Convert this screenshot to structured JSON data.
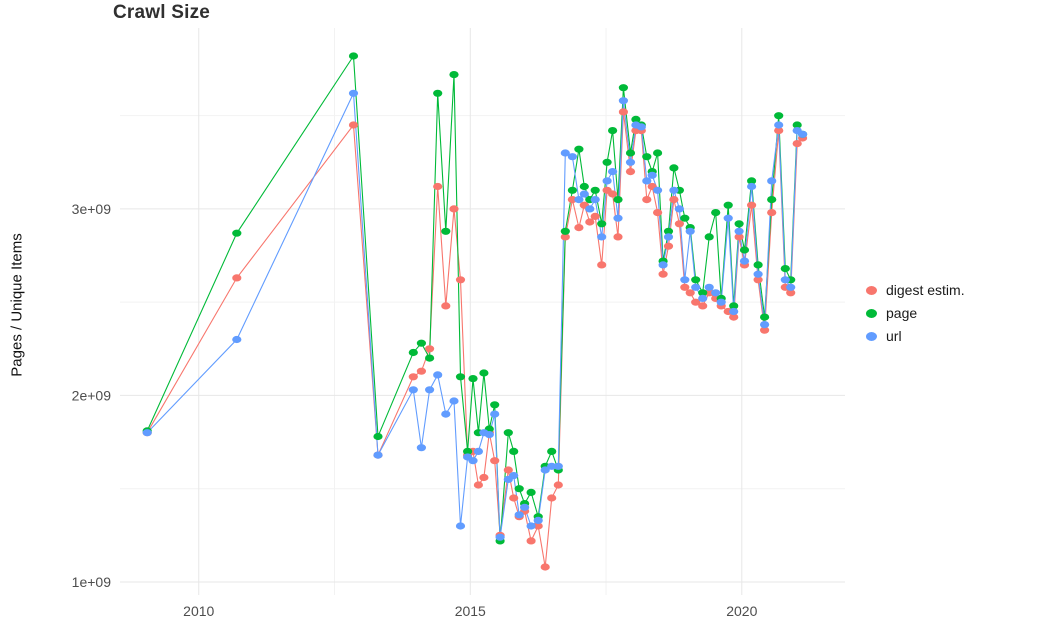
{
  "page": {
    "background_color": "#ffffff",
    "text_color_ticks": "#4d4d4d",
    "grid_major_color": "#e7e7e7",
    "grid_minor_color": "#f2f2f2"
  },
  "chart_data": {
    "type": "scatter",
    "title": "Crawl Size",
    "xlabel": "",
    "ylabel": "Pages / Unique Items",
    "legend_position": "right",
    "grid": true,
    "values_unit": "1e9 (billions of pages / unique items)",
    "xlim": [
      2008.55,
      2021.9
    ],
    "ylim": [
      0.93,
      3.97
    ],
    "x_ticks": [
      {
        "value": 2010,
        "label": "2010"
      },
      {
        "value": 2015,
        "label": "2015"
      },
      {
        "value": 2020,
        "label": "2020"
      }
    ],
    "x_minor": [
      2012.5,
      2017.5
    ],
    "y_ticks": [
      {
        "value": 1,
        "label": "1e+09"
      },
      {
        "value": 2,
        "label": "2e+09"
      },
      {
        "value": 3,
        "label": "3e+09"
      }
    ],
    "y_minor": [
      1.5,
      2.5,
      3.5
    ],
    "x": [
      2009.05,
      2010.7,
      2012.85,
      2013.3,
      2013.95,
      2014.1,
      2014.25,
      2014.4,
      2014.55,
      2014.7,
      2014.82,
      2014.95,
      2015.05,
      2015.15,
      2015.25,
      2015.35,
      2015.45,
      2015.55,
      2015.7,
      2015.8,
      2015.9,
      2016.0,
      2016.12,
      2016.25,
      2016.38,
      2016.5,
      2016.62,
      2016.75,
      2016.88,
      2017.0,
      2017.1,
      2017.2,
      2017.3,
      2017.42,
      2017.52,
      2017.62,
      2017.72,
      2017.82,
      2017.95,
      2018.05,
      2018.15,
      2018.25,
      2018.35,
      2018.45,
      2018.55,
      2018.65,
      2018.75,
      2018.85,
      2018.95,
      2019.05,
      2019.15,
      2019.28,
      2019.4,
      2019.52,
      2019.62,
      2019.75,
      2019.85,
      2019.95,
      2020.05,
      2020.18,
      2020.3,
      2020.42,
      2020.55,
      2020.68,
      2020.8,
      2020.9,
      2021.02,
      2021.12
    ],
    "series": [
      {
        "name": "digest estim.",
        "color": "#F8766D",
        "values": [
          1.8,
          2.63,
          3.45,
          1.68,
          2.1,
          2.13,
          2.25,
          3.12,
          2.48,
          3.0,
          2.62,
          1.68,
          1.7,
          1.52,
          1.56,
          1.8,
          1.65,
          1.25,
          1.6,
          1.45,
          1.35,
          1.38,
          1.22,
          1.3,
          1.08,
          1.45,
          1.52,
          2.85,
          3.05,
          2.9,
          3.02,
          2.93,
          2.96,
          2.7,
          3.1,
          3.08,
          2.85,
          3.52,
          3.2,
          3.42,
          3.42,
          3.05,
          3.12,
          2.98,
          2.65,
          2.8,
          3.05,
          2.92,
          2.58,
          2.55,
          2.5,
          2.48,
          2.55,
          2.52,
          2.48,
          2.45,
          2.42,
          2.85,
          2.7,
          3.02,
          2.62,
          2.35,
          2.98,
          3.42,
          2.58,
          2.55,
          3.35,
          3.38
        ]
      },
      {
        "name": "page",
        "color": "#00BA38",
        "values": [
          1.81,
          2.87,
          3.82,
          1.78,
          2.23,
          2.28,
          2.2,
          3.62,
          2.88,
          3.72,
          2.1,
          1.7,
          2.09,
          1.8,
          2.12,
          1.82,
          1.95,
          1.22,
          1.8,
          1.7,
          1.5,
          1.42,
          1.48,
          1.35,
          1.62,
          1.7,
          1.6,
          2.88,
          3.1,
          3.32,
          3.12,
          3.05,
          3.1,
          2.92,
          3.25,
          3.42,
          3.05,
          3.65,
          3.3,
          3.48,
          3.45,
          3.28,
          3.2,
          3.3,
          2.72,
          2.88,
          3.22,
          3.1,
          2.95,
          2.9,
          2.62,
          2.55,
          2.85,
          2.98,
          2.52,
          3.02,
          2.48,
          2.92,
          2.78,
          3.15,
          2.7,
          2.42,
          3.05,
          3.5,
          2.68,
          2.62,
          3.45,
          3.4
        ]
      },
      {
        "name": "url",
        "color": "#619CFF",
        "values": [
          1.8,
          2.3,
          3.62,
          1.68,
          2.03,
          1.72,
          2.03,
          2.11,
          1.9,
          1.97,
          1.3,
          1.67,
          1.65,
          1.7,
          1.8,
          1.79,
          1.9,
          1.24,
          1.55,
          1.57,
          1.36,
          1.4,
          1.3,
          1.33,
          1.6,
          1.62,
          1.62,
          3.3,
          3.28,
          3.05,
          3.08,
          3.0,
          3.05,
          2.85,
          3.15,
          3.2,
          2.95,
          3.58,
          3.25,
          3.45,
          3.44,
          3.15,
          3.18,
          3.1,
          2.7,
          2.85,
          3.1,
          3.0,
          2.62,
          2.88,
          2.58,
          2.52,
          2.58,
          2.55,
          2.5,
          2.95,
          2.45,
          2.88,
          2.72,
          3.12,
          2.65,
          2.38,
          3.15,
          3.45,
          2.62,
          2.58,
          3.42,
          3.4
        ]
      }
    ]
  }
}
